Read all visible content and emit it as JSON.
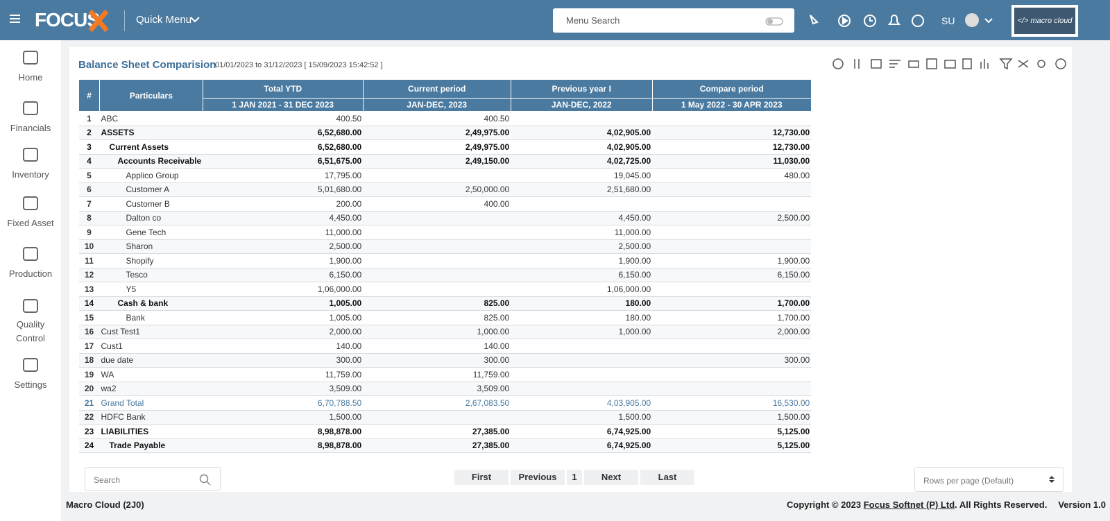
{
  "header": {
    "logo": "FOCUS",
    "quick_menu": "Quick Menu",
    "search_placeholder": "Menu Search",
    "user": "SU"
  },
  "sidebar": {
    "items": [
      "Home",
      "Financials",
      "Inventory",
      "Fixed Asset",
      "Production",
      "Quality Control",
      "Settings"
    ]
  },
  "report": {
    "title": "Balance Sheet Comparision",
    "subtitle": "01/01/2023 to 31/12/2023 [ 15/09/2023 15:42:52 ]"
  },
  "table": {
    "columns": [
      {
        "name": "#"
      },
      {
        "name": "Particulars"
      },
      {
        "name": "Total YTD",
        "sub": "1 JAN 2021 - 31 DEC 2023"
      },
      {
        "name": "Current period",
        "sub": "JAN-DEC, 2023"
      },
      {
        "name": "Previous year I",
        "sub": "JAN-DEC, 2022"
      },
      {
        "name": "Compare period",
        "sub": "1 May 2022 - 30 APR 2023"
      }
    ],
    "rows": [
      {
        "no": 1,
        "name": "ABC",
        "level": 0,
        "style": "plain",
        "cells": [
          "400.50",
          "400.50",
          null,
          null
        ]
      },
      {
        "no": 2,
        "name": "ASSETS",
        "level": 0,
        "style": "bold",
        "cells": [
          "6,52,680.00",
          "2,49,975.00",
          "4,02,905.00",
          "12,730.00"
        ]
      },
      {
        "no": 3,
        "name": "Current Assets",
        "level": 1,
        "style": "bold",
        "cells": [
          "6,52,680.00",
          "2,49,975.00",
          "4,02,905.00",
          "12,730.00"
        ]
      },
      {
        "no": 4,
        "name": "Accounts Receivable",
        "level": 2,
        "style": "bold",
        "cells": [
          "6,51,675.00",
          "2,49,150.00",
          "4,02,725.00",
          "11,030.00"
        ]
      },
      {
        "no": 5,
        "name": "Applico Group",
        "level": 3,
        "style": "plain",
        "cells": [
          "17,795.00",
          null,
          "19,045.00",
          "480.00"
        ]
      },
      {
        "no": 6,
        "name": "Customer A",
        "level": 3,
        "style": "plain",
        "cells": [
          "5,01,680.00",
          "2,50,000.00",
          "2,51,680.00",
          null
        ]
      },
      {
        "no": 7,
        "name": "Customer B",
        "level": 3,
        "style": "plain",
        "cells": [
          "200.00",
          "400.00",
          null,
          null
        ]
      },
      {
        "no": 8,
        "name": "Dalton co",
        "level": 3,
        "style": "plain",
        "cells": [
          "4,450.00",
          null,
          "4,450.00",
          "2,500.00"
        ]
      },
      {
        "no": 9,
        "name": "Gene Tech",
        "level": 3,
        "style": "plain",
        "cells": [
          "11,000.00",
          null,
          "11,000.00",
          null
        ]
      },
      {
        "no": 10,
        "name": "Sharon",
        "level": 3,
        "style": "plain",
        "cells": [
          "2,500.00",
          null,
          "2,500.00",
          null
        ]
      },
      {
        "no": 11,
        "name": "Shopify",
        "level": 3,
        "style": "plain",
        "cells": [
          "1,900.00",
          null,
          "1,900.00",
          "1,900.00"
        ]
      },
      {
        "no": 12,
        "name": "Tesco",
        "level": 3,
        "style": "plain",
        "cells": [
          "6,150.00",
          null,
          "6,150.00",
          "6,150.00"
        ]
      },
      {
        "no": 13,
        "name": "Y5",
        "level": 3,
        "style": "plain",
        "cells": [
          "1,06,000.00",
          null,
          "1,06,000.00",
          null
        ]
      },
      {
        "no": 14,
        "name": "Cash & bank",
        "level": 2,
        "style": "bold",
        "cells": [
          "1,005.00",
          "825.00",
          "180.00",
          "1,700.00"
        ]
      },
      {
        "no": 15,
        "name": "Bank",
        "level": 3,
        "style": "plain",
        "cells": [
          "1,005.00",
          "825.00",
          "180.00",
          "1,700.00"
        ]
      },
      {
        "no": 16,
        "name": "Cust Test1",
        "level": 0,
        "style": "plain",
        "cells": [
          "2,000.00",
          "1,000.00",
          "1,000.00",
          "2,000.00"
        ]
      },
      {
        "no": 17,
        "name": "Cust1",
        "level": 0,
        "style": "plain",
        "cells": [
          "140.00",
          "140.00",
          null,
          null
        ]
      },
      {
        "no": 18,
        "name": "due date",
        "level": 0,
        "style": "plain",
        "cells": [
          "300.00",
          "300.00",
          null,
          "300.00"
        ]
      },
      {
        "no": 19,
        "name": "WA",
        "level": 0,
        "style": "plain",
        "cells": [
          "11,759.00",
          "11,759.00",
          null,
          null
        ]
      },
      {
        "no": 20,
        "name": "wa2",
        "level": 0,
        "style": "plain",
        "cells": [
          "3,509.00",
          "3,509.00",
          null,
          null
        ]
      },
      {
        "no": 21,
        "name": "Grand Total",
        "level": 0,
        "style": "total",
        "cells": [
          "6,70,788.50",
          "2,67,083.50",
          "4,03,905.00",
          "16,530.00"
        ]
      },
      {
        "no": 22,
        "name": "HDFC Bank",
        "level": 0,
        "style": "plain",
        "cells": [
          "1,500.00",
          null,
          "1,500.00",
          "1,500.00"
        ]
      },
      {
        "no": 23,
        "name": "LIABILITIES",
        "level": 0,
        "style": "bold",
        "cells": [
          "8,98,878.00",
          "27,385.00",
          "6,74,925.00",
          "5,125.00"
        ]
      },
      {
        "no": 24,
        "name": "Trade Payable",
        "level": 1,
        "style": "bold",
        "cells": [
          "8,98,878.00",
          "27,385.00",
          "6,74,925.00",
          "5,125.00"
        ]
      }
    ]
  },
  "pagination": {
    "search_placeholder": "Search",
    "buttons": [
      "First",
      "Previous",
      "1",
      "Next",
      "Last"
    ],
    "rows_per_page": "Rows per page (Default)"
  },
  "footer": {
    "company": "Macro Cloud (2J0)",
    "copyright": "Copyright © 2023 ",
    "owner": "Focus Softnet (P) Ltd",
    "rights": ". All Rights Reserved.",
    "version": "Version 1.0"
  }
}
